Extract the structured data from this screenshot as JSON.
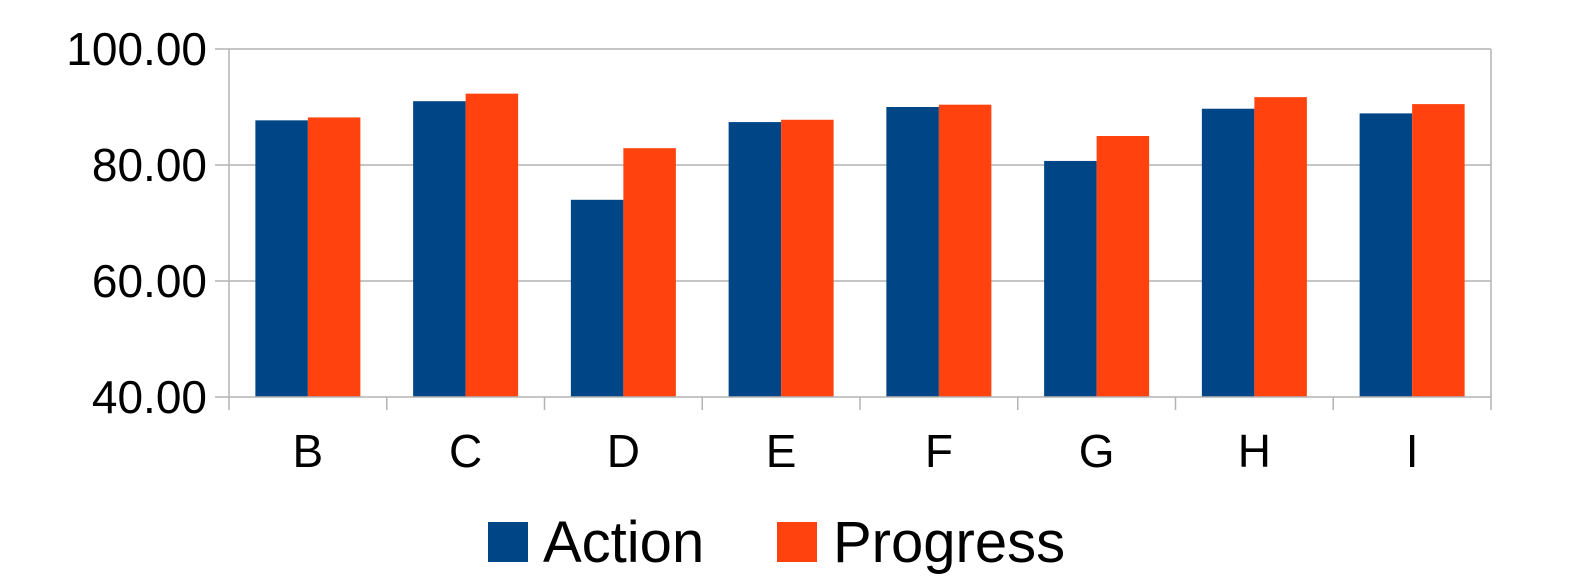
{
  "chart_data": {
    "type": "bar",
    "title": "",
    "xlabel": "",
    "ylabel": "",
    "categories": [
      "B",
      "C",
      "D",
      "E",
      "F",
      "G",
      "H",
      "I"
    ],
    "series": [
      {
        "name": "Action",
        "color": "#004586",
        "values": [
          87.7,
          91.0,
          74.0,
          87.4,
          90.0,
          80.7,
          89.7,
          88.9
        ]
      },
      {
        "name": "Progress",
        "color": "#FF420E",
        "values": [
          88.2,
          92.3,
          82.9,
          87.8,
          90.4,
          85.0,
          91.7,
          90.5
        ]
      }
    ],
    "ylim": [
      40,
      100
    ],
    "yticks": [
      "40.00",
      "60.00",
      "80.00",
      "100.00"
    ],
    "grid": true,
    "legend_position": "bottom"
  }
}
